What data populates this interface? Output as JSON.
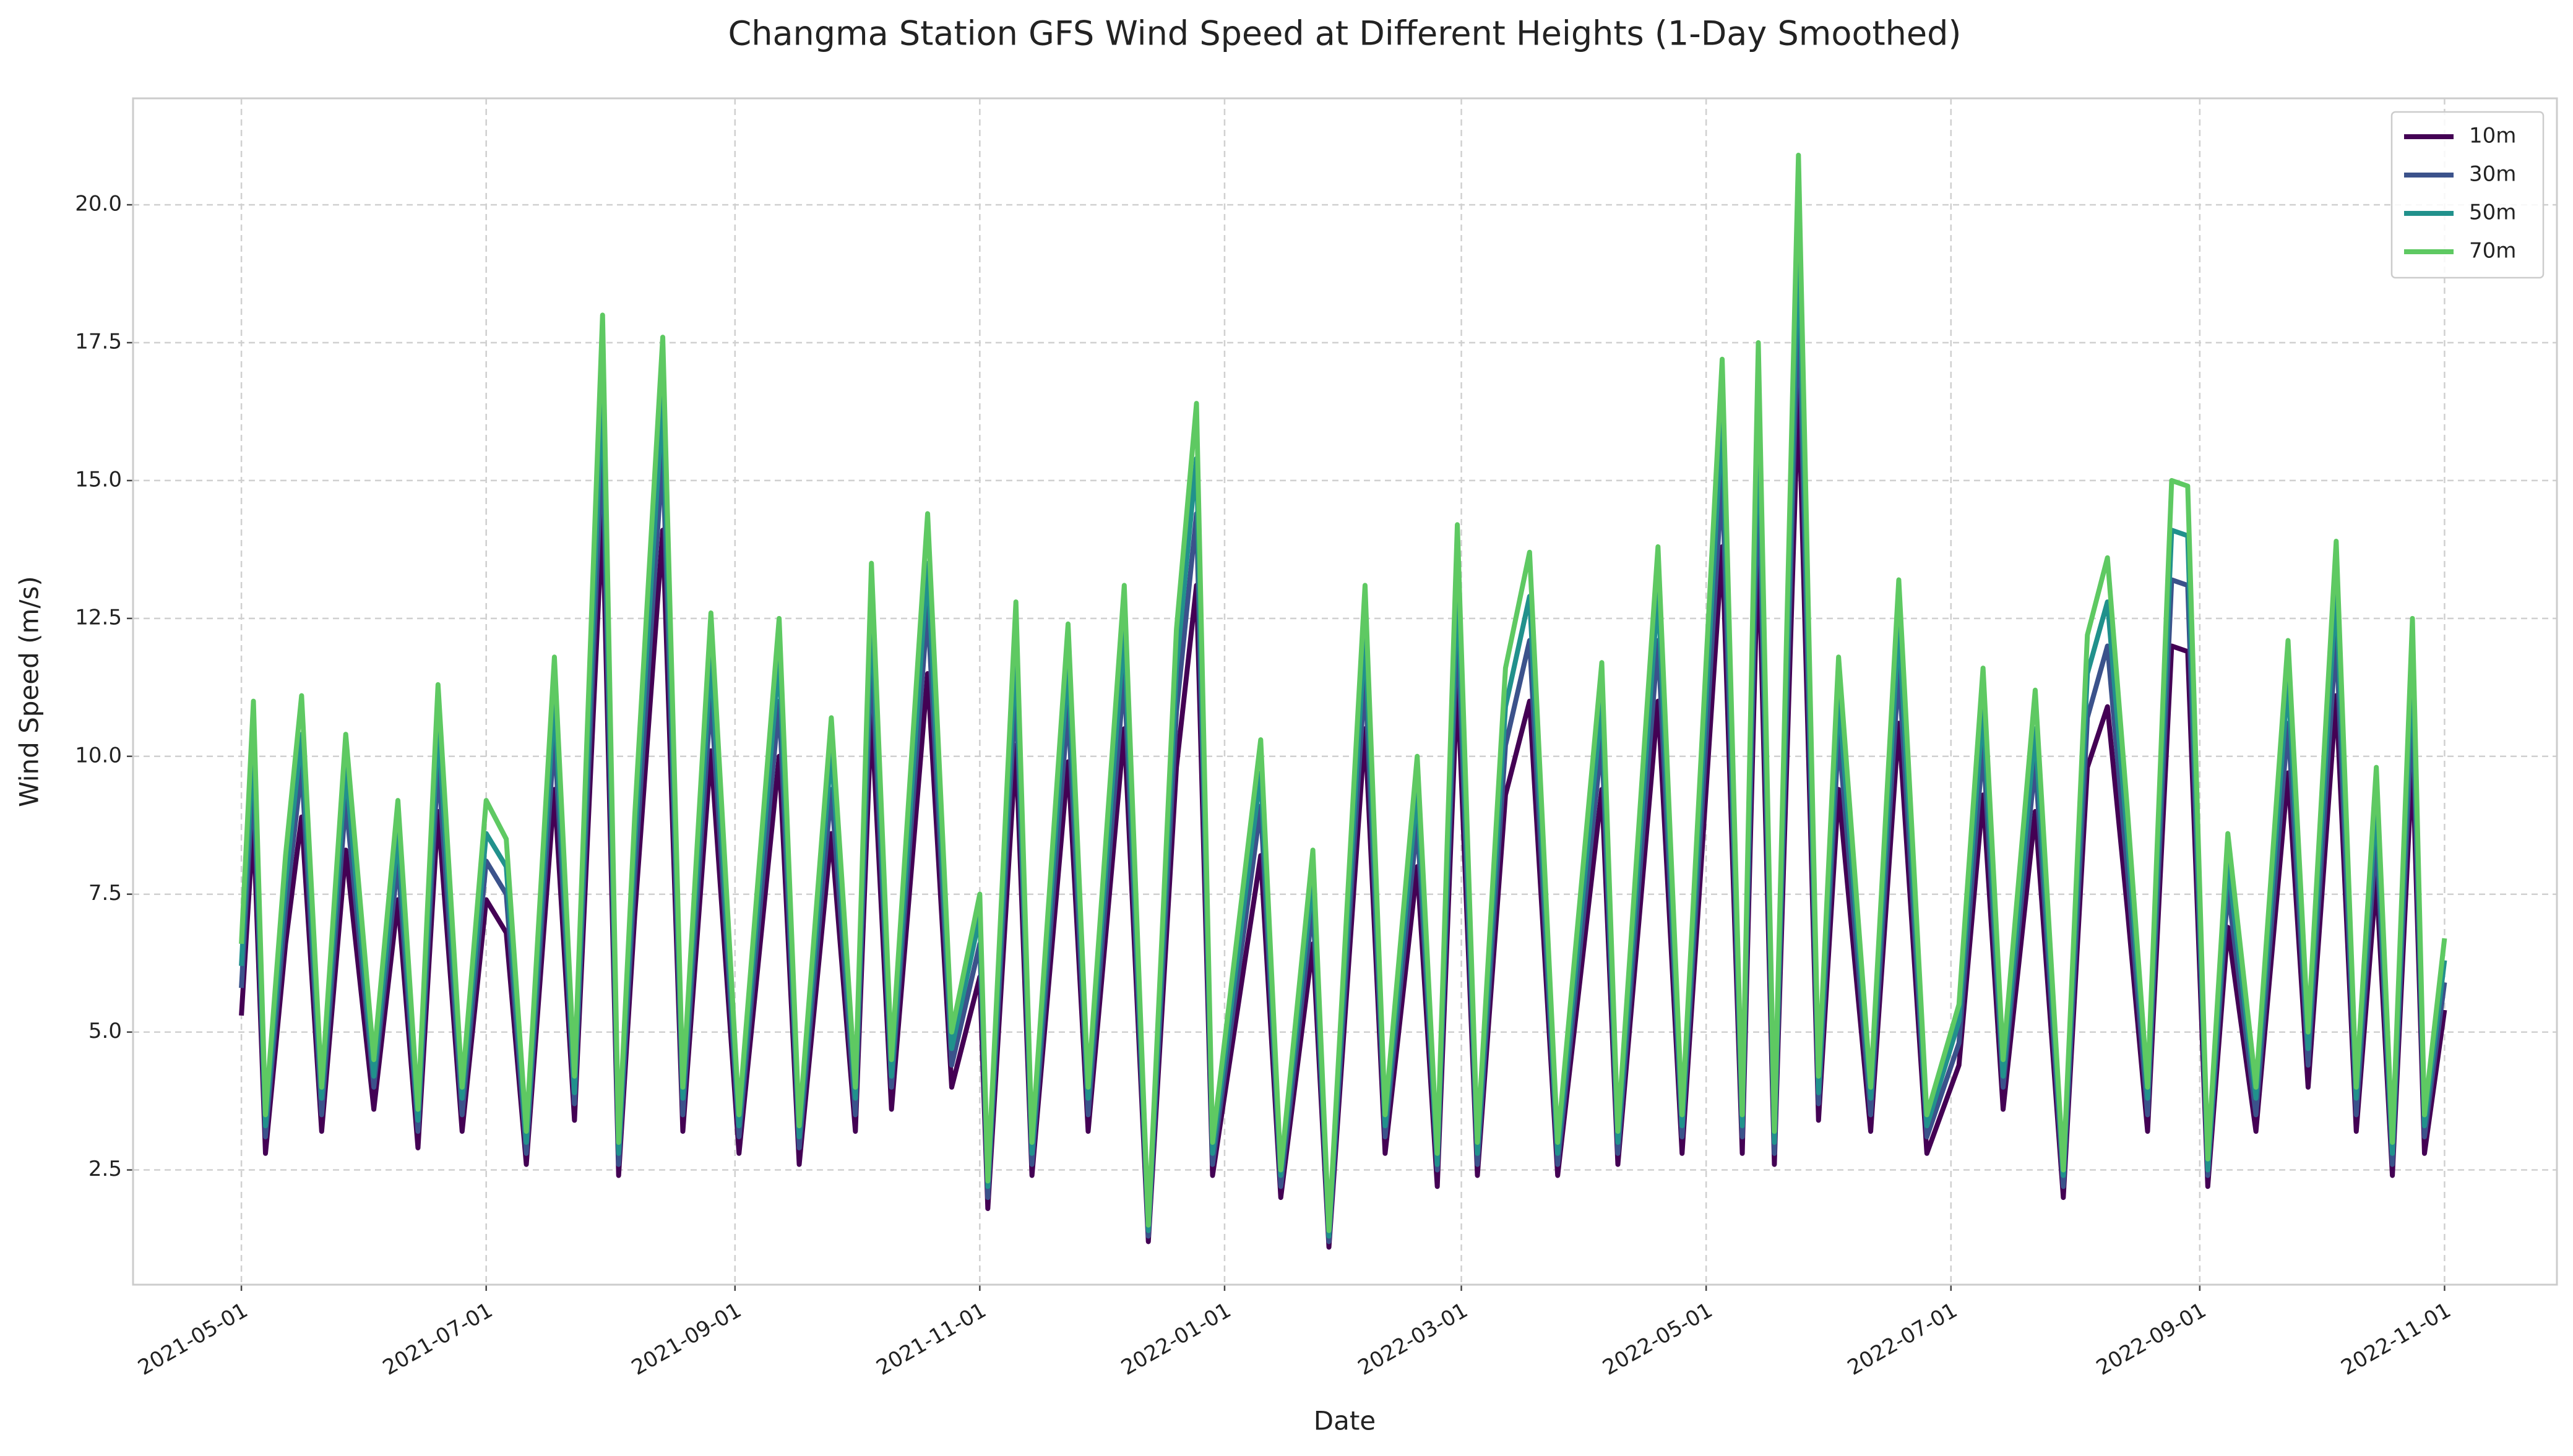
{
  "chart_data": {
    "type": "line",
    "title": "Changma Station GFS Wind Speed at Different Heights (1-Day Smoothed)",
    "x_label": "Date",
    "y_label": "Wind Speed (m/s)",
    "x": [
      "2021-05-01",
      "2021-05-04",
      "2021-05-07",
      "2021-05-12",
      "2021-05-16",
      "2021-05-21",
      "2021-05-27",
      "2021-06-03",
      "2021-06-09",
      "2021-06-14",
      "2021-06-19",
      "2021-06-25",
      "2021-07-01",
      "2021-07-06",
      "2021-07-11",
      "2021-07-18",
      "2021-07-23",
      "2021-07-30",
      "2021-08-03",
      "2021-08-07",
      "2021-08-14",
      "2021-08-19",
      "2021-08-26",
      "2021-09-02",
      "2021-09-12",
      "2021-09-17",
      "2021-09-25",
      "2021-10-01",
      "2021-10-05",
      "2021-10-10",
      "2021-10-19",
      "2021-10-25",
      "2021-11-01",
      "2021-11-03",
      "2021-11-10",
      "2021-11-14",
      "2021-11-23",
      "2021-11-28",
      "2021-12-07",
      "2021-12-13",
      "2021-12-20",
      "2021-12-25",
      "2021-12-29",
      "2022-01-10",
      "2022-01-15",
      "2022-01-23",
      "2022-01-27",
      "2022-02-05",
      "2022-02-10",
      "2022-02-18",
      "2022-02-23",
      "2022-02-28",
      "2022-03-05",
      "2022-03-12",
      "2022-03-18",
      "2022-03-25",
      "2022-04-05",
      "2022-04-09",
      "2022-04-19",
      "2022-04-25",
      "2022-05-05",
      "2022-05-10",
      "2022-05-14",
      "2022-05-18",
      "2022-05-24",
      "2022-05-29",
      "2022-06-03",
      "2022-06-11",
      "2022-06-18",
      "2022-06-25",
      "2022-07-03",
      "2022-07-09",
      "2022-07-14",
      "2022-07-22",
      "2022-07-29",
      "2022-08-04",
      "2022-08-09",
      "2022-08-14",
      "2022-08-19",
      "2022-08-25",
      "2022-08-29",
      "2022-09-03",
      "2022-09-08",
      "2022-09-15",
      "2022-09-23",
      "2022-09-28",
      "2022-10-05",
      "2022-10-10",
      "2022-10-15",
      "2022-10-19",
      "2022-10-24",
      "2022-10-27",
      "2022-11-01"
    ],
    "series": [
      {
        "name": "10m",
        "color": "#440154",
        "values": [
          5.3,
          8.8,
          2.8,
          6.6,
          8.9,
          3.2,
          8.3,
          3.6,
          7.4,
          2.9,
          9.0,
          3.2,
          7.4,
          6.8,
          2.6,
          9.4,
          3.4,
          14.4,
          2.4,
          7.1,
          14.1,
          3.2,
          10.1,
          2.8,
          10.0,
          2.6,
          8.6,
          3.2,
          10.8,
          3.6,
          11.5,
          4.0,
          6.0,
          1.8,
          10.2,
          2.4,
          9.9,
          3.2,
          10.5,
          1.2,
          9.8,
          13.1,
          2.4,
          8.2,
          2.0,
          6.6,
          1.1,
          10.5,
          2.8,
          8.0,
          2.2,
          11.4,
          2.4,
          9.3,
          11.0,
          2.4,
          9.4,
          2.6,
          11.0,
          2.8,
          13.8,
          2.8,
          14.0,
          2.6,
          16.7,
          3.4,
          9.4,
          3.2,
          10.6,
          2.8,
          4.4,
          9.3,
          3.6,
          9.0,
          2.0,
          9.8,
          10.9,
          7.2,
          3.2,
          12.0,
          11.9,
          2.2,
          6.9,
          3.2,
          9.7,
          4.0,
          11.1,
          3.2,
          7.8,
          2.4,
          10.0,
          2.8,
          5.4
        ]
      },
      {
        "name": "30m",
        "color": "#3b528b",
        "values": [
          5.8,
          9.7,
          3.1,
          7.2,
          9.8,
          3.5,
          9.2,
          4.0,
          8.1,
          3.2,
          9.9,
          3.5,
          8.1,
          7.5,
          2.8,
          10.4,
          3.7,
          15.8,
          2.6,
          7.8,
          15.5,
          3.5,
          11.1,
          3.1,
          11.0,
          2.9,
          9.4,
          3.5,
          11.9,
          4.0,
          12.7,
          4.4,
          6.6,
          2.0,
          11.3,
          2.6,
          10.9,
          3.5,
          11.5,
          1.3,
          10.8,
          14.4,
          2.6,
          9.1,
          2.2,
          7.3,
          1.2,
          11.5,
          3.1,
          8.8,
          2.5,
          12.5,
          2.6,
          10.2,
          12.1,
          2.6,
          10.3,
          2.8,
          12.1,
          3.1,
          15.1,
          3.1,
          15.4,
          2.8,
          18.4,
          3.7,
          10.4,
          3.5,
          11.6,
          3.1,
          4.8,
          10.2,
          4.0,
          9.9,
          2.2,
          10.7,
          12.0,
          7.9,
          3.5,
          13.2,
          13.1,
          2.4,
          7.6,
          3.5,
          10.6,
          4.4,
          12.2,
          3.5,
          8.6,
          2.6,
          11.0,
          3.1,
          5.9
        ]
      },
      {
        "name": "50m",
        "color": "#21918c",
        "values": [
          6.2,
          10.3,
          3.3,
          7.7,
          10.4,
          3.8,
          9.8,
          4.2,
          8.6,
          3.4,
          10.6,
          3.8,
          8.6,
          8.0,
          3.0,
          11.1,
          3.9,
          16.9,
          2.8,
          8.4,
          16.5,
          3.8,
          11.8,
          3.3,
          11.8,
          3.1,
          10.1,
          3.8,
          12.7,
          4.2,
          13.5,
          4.7,
          7.1,
          2.2,
          12.0,
          2.8,
          11.7,
          3.8,
          12.3,
          1.4,
          11.6,
          15.4,
          2.8,
          9.7,
          2.4,
          7.8,
          1.3,
          12.3,
          3.3,
          9.4,
          2.6,
          13.3,
          2.8,
          10.9,
          12.9,
          2.8,
          11.0,
          3.0,
          13.0,
          3.3,
          16.2,
          3.3,
          16.5,
          3.0,
          19.6,
          3.9,
          11.1,
          3.8,
          12.4,
          3.3,
          5.2,
          10.9,
          4.2,
          10.5,
          2.4,
          11.5,
          12.8,
          8.5,
          3.8,
          14.1,
          14.0,
          2.5,
          8.1,
          3.8,
          11.4,
          4.7,
          13.1,
          3.8,
          9.2,
          2.8,
          11.8,
          3.3,
          6.3
        ]
      },
      {
        "name": "70m",
        "color": "#5ec962",
        "values": [
          6.6,
          11.0,
          3.5,
          8.2,
          11.1,
          4.0,
          10.4,
          4.5,
          9.2,
          3.6,
          11.3,
          4.0,
          9.2,
          8.5,
          3.2,
          11.8,
          4.2,
          18.0,
          3.0,
          8.9,
          17.6,
          4.0,
          12.6,
          3.5,
          12.5,
          3.3,
          10.7,
          4.0,
          13.5,
          4.5,
          14.4,
          5.0,
          7.5,
          2.3,
          12.8,
          3.0,
          12.4,
          4.0,
          13.1,
          1.5,
          12.3,
          16.4,
          3.0,
          10.3,
          2.5,
          8.3,
          1.4,
          13.1,
          3.5,
          10.0,
          2.8,
          14.2,
          3.0,
          11.6,
          13.7,
          3.0,
          11.7,
          3.2,
          13.8,
          3.5,
          17.2,
          3.5,
          17.5,
          3.2,
          20.9,
          4.2,
          11.8,
          4.0,
          13.2,
          3.5,
          5.5,
          11.6,
          4.5,
          11.2,
          2.5,
          12.2,
          13.6,
          9.0,
          4.0,
          15.0,
          14.9,
          2.7,
          8.6,
          4.0,
          12.1,
          5.0,
          13.9,
          4.0,
          9.8,
          3.0,
          12.5,
          3.5,
          6.7
        ]
      }
    ],
    "xlim": [
      "2021-04-04",
      "2022-11-29"
    ],
    "xticks": [
      "2021-05-01",
      "2021-07-01",
      "2021-09-01",
      "2021-11-01",
      "2022-01-01",
      "2022-03-01",
      "2022-05-01",
      "2022-07-01",
      "2022-09-01",
      "2022-11-01"
    ],
    "ylim": [
      0.42,
      21.93
    ],
    "yticks": [
      {
        "value": 2.5,
        "label": "2.5"
      },
      {
        "value": 5,
        "label": "5.0"
      },
      {
        "value": 7.5,
        "label": "7.5"
      },
      {
        "value": 10,
        "label": "10.0"
      },
      {
        "value": 12.5,
        "label": "12.5"
      },
      {
        "value": 15,
        "label": "15.0"
      },
      {
        "value": 17.5,
        "label": "17.5"
      },
      {
        "value": 20,
        "label": "20.0"
      }
    ],
    "grid": true,
    "legend": "upper right"
  }
}
